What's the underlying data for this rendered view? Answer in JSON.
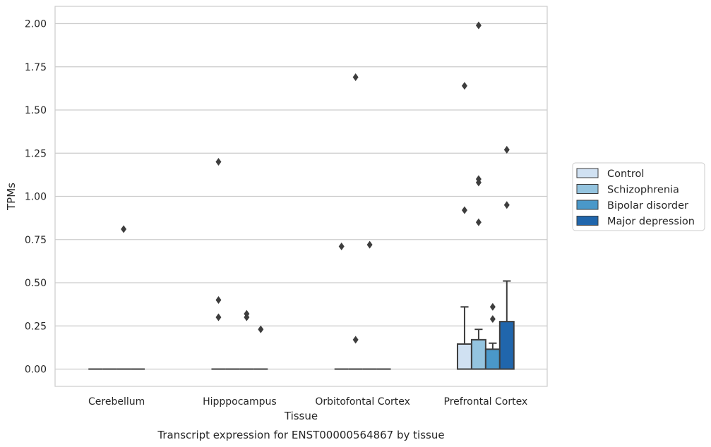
{
  "chart_data": {
    "type": "box",
    "title": "",
    "caption": "Transcript expression for ENST00000564867 by tissue",
    "xlabel": "Tissue",
    "ylabel": "TPMs",
    "ylim": [
      -0.1,
      2.1
    ],
    "yticks": [
      0.0,
      0.25,
      0.5,
      0.75,
      1.0,
      1.25,
      1.5,
      1.75,
      2.0
    ],
    "ytick_labels": [
      "0.00",
      "0.25",
      "0.50",
      "0.75",
      "1.00",
      "1.25",
      "1.50",
      "1.75",
      "2.00"
    ],
    "grid": "horizontal",
    "legend_position": "right",
    "categories": [
      "Cerebellum",
      "Hipppocampus",
      "Orbitofontal Cortex",
      "Prefrontal Cortex"
    ],
    "series": [
      {
        "name": "Control",
        "color": "#d0e1f2",
        "boxes": [
          {
            "q1": 0,
            "median": 0,
            "q3": 0,
            "whisker_low": 0,
            "whisker_high": 0,
            "outliers": []
          },
          {
            "q1": 0,
            "median": 0,
            "q3": 0,
            "whisker_low": 0,
            "whisker_high": 0,
            "outliers": [
              0.4,
              0.3,
              1.2
            ]
          },
          {
            "q1": 0,
            "median": 0,
            "q3": 0,
            "whisker_low": 0,
            "whisker_high": 0,
            "outliers": [
              0.71
            ]
          },
          {
            "q1": 0,
            "median": 0,
            "q3": 0.145,
            "whisker_low": 0,
            "whisker_high": 0.36,
            "outliers": [
              0.92,
              1.64
            ]
          }
        ]
      },
      {
        "name": "Schizophrenia",
        "color": "#94c4df",
        "boxes": [
          {
            "q1": 0,
            "median": 0,
            "q3": 0,
            "whisker_low": 0,
            "whisker_high": 0,
            "outliers": []
          },
          {
            "q1": 0,
            "median": 0,
            "q3": 0,
            "whisker_low": 0,
            "whisker_high": 0,
            "outliers": []
          },
          {
            "q1": 0,
            "median": 0,
            "q3": 0,
            "whisker_low": 0,
            "whisker_high": 0,
            "outliers": [
              0.17,
              1.69
            ]
          },
          {
            "q1": 0,
            "median": 0,
            "q3": 0.17,
            "whisker_low": 0,
            "whisker_high": 0.23,
            "outliers": [
              0.85,
              1.08,
              1.1,
              1.99
            ]
          }
        ]
      },
      {
        "name": "Bipolar disorder",
        "color": "#4a98c9",
        "boxes": [
          {
            "q1": 0,
            "median": 0,
            "q3": 0,
            "whisker_low": 0,
            "whisker_high": 0,
            "outliers": [
              0.81
            ]
          },
          {
            "q1": 0,
            "median": 0,
            "q3": 0,
            "whisker_low": 0,
            "whisker_high": 0,
            "outliers": [
              0.32,
              0.3
            ]
          },
          {
            "q1": 0,
            "median": 0,
            "q3": 0,
            "whisker_low": 0,
            "whisker_high": 0,
            "outliers": [
              0.72
            ]
          },
          {
            "q1": 0,
            "median": 0,
            "q3": 0.115,
            "whisker_low": 0,
            "whisker_high": 0.15,
            "outliers": [
              0.29,
              0.36
            ]
          }
        ]
      },
      {
        "name": "Major depression",
        "color": "#2066ac",
        "boxes": [
          {
            "q1": 0,
            "median": 0,
            "q3": 0,
            "whisker_low": 0,
            "whisker_high": 0,
            "outliers": []
          },
          {
            "q1": 0,
            "median": 0,
            "q3": 0,
            "whisker_low": 0,
            "whisker_high": 0,
            "outliers": [
              0.23
            ]
          },
          {
            "q1": 0,
            "median": 0,
            "q3": 0,
            "whisker_low": 0,
            "whisker_high": 0,
            "outliers": []
          },
          {
            "q1": 0,
            "median": 0,
            "q3": 0.275,
            "whisker_low": 0,
            "whisker_high": 0.51,
            "outliers": [
              0.95,
              1.27
            ]
          }
        ]
      }
    ],
    "colors": {
      "grid": "#cccccc",
      "frame": "#cccccc",
      "edge": "#3d3d3d",
      "outlier": "#3d3d3d"
    }
  }
}
